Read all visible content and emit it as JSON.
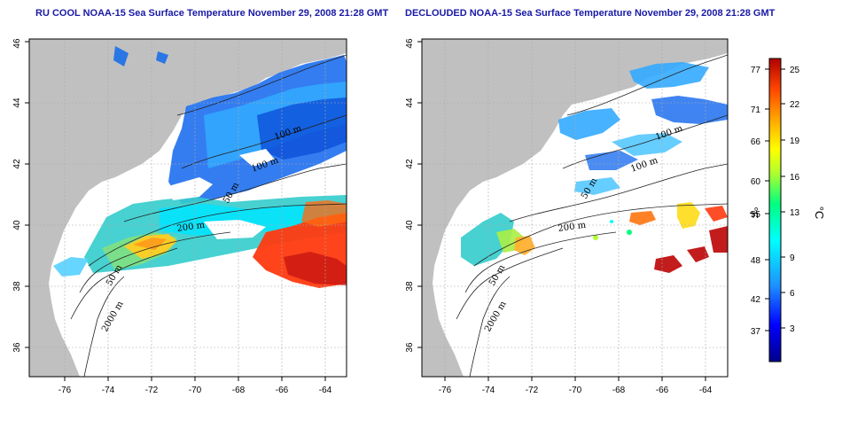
{
  "maps": [
    {
      "id": "left",
      "title": "RU COOL NOAA-15 Sea Surface Temperature November 29, 2008 21:28 GMT",
      "contour_labels": [
        "100 m",
        "100 m",
        "50 m",
        "200 m",
        "50 m",
        "2000 m"
      ]
    },
    {
      "id": "right",
      "title": "DECLOUDED NOAA-15 Sea Surface Temperature November 29, 2008 21:28 GMT",
      "contour_labels": [
        "100 m",
        "100 m",
        "50 m",
        "200 m",
        "50 m",
        "2000 m"
      ]
    }
  ],
  "axes": {
    "lon_ticks": [
      "-76",
      "-74",
      "-72",
      "-70",
      "-68",
      "-66",
      "-64"
    ],
    "lat_ticks": [
      "36",
      "38",
      "40",
      "42",
      "44",
      "46"
    ],
    "lon_range": [
      -77,
      -63
    ],
    "lat_range": [
      35,
      46
    ]
  },
  "colorbar": {
    "fahrenheit_ticks": [
      "77",
      "71",
      "66",
      "60",
      "55",
      "48",
      "42",
      "37"
    ],
    "celsius_ticks": [
      "25",
      "22",
      "19",
      "16",
      "13",
      "9",
      "6",
      "3"
    ],
    "fahrenheit_unit": "°F",
    "celsius_unit": "°C",
    "colors": [
      "#00008b",
      "#0000ff",
      "#1e90ff",
      "#00ffff",
      "#00ff7f",
      "#adff2f",
      "#ffff00",
      "#ffa500",
      "#ff4500",
      "#b00000"
    ]
  },
  "palette": {
    "land": "#c0c0c0",
    "ocean": "#ffffff",
    "title_color": "#1a1aa6",
    "grid": "#aaaaaa"
  }
}
